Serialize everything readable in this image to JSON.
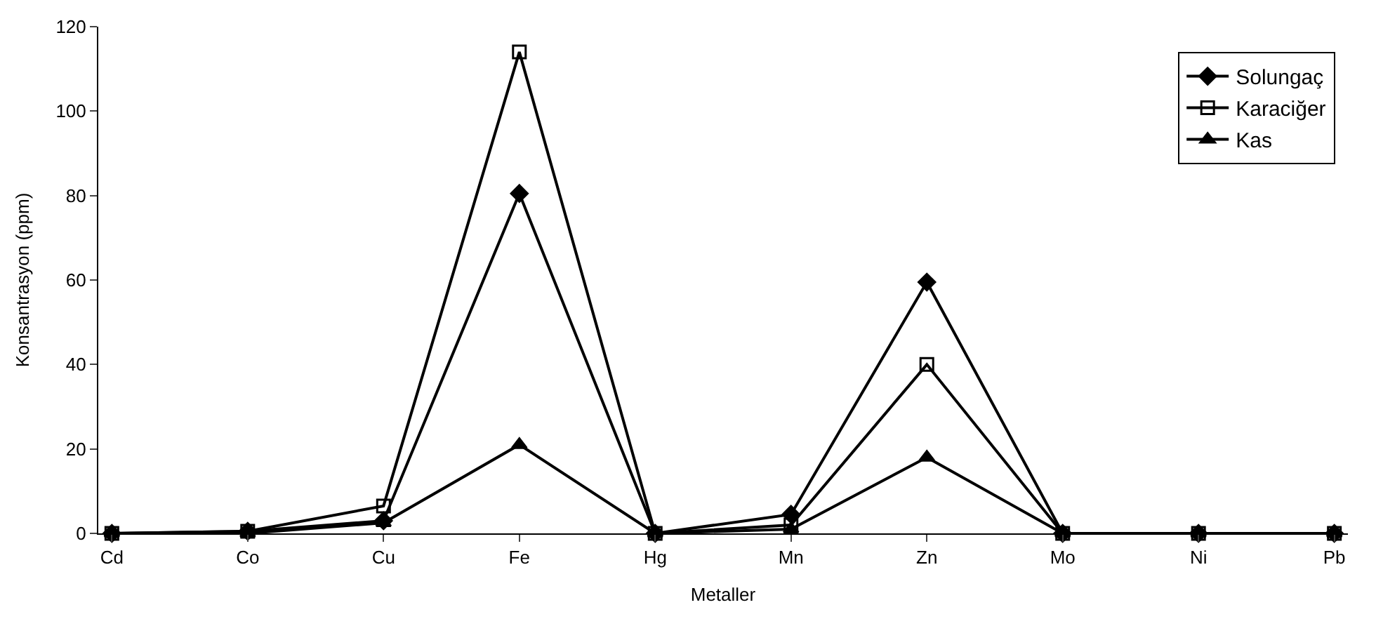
{
  "chart_data": {
    "type": "line",
    "xlabel": "Metaller",
    "ylabel": "Konsantrasyon (ppm)",
    "categories": [
      "Cd",
      "Co",
      "Cu",
      "Fe",
      "Hg",
      "Mn",
      "Zn",
      "Mo",
      "Ni",
      "Pb"
    ],
    "series": [
      {
        "name": "Solungaç",
        "color": "#000000",
        "marker": "diamond",
        "values": [
          0,
          0.5,
          3,
          80.5,
          0,
          4.5,
          59.5,
          0,
          0,
          0
        ]
      },
      {
        "name": "Karaciğer",
        "color": "#000000",
        "marker": "square",
        "values": [
          0,
          0.5,
          6.5,
          114,
          0,
          2,
          40,
          0,
          0,
          0
        ]
      },
      {
        "name": "Kas",
        "color": "#000000",
        "marker": "triangle",
        "values": [
          0,
          0,
          2.5,
          21,
          0,
          1,
          18,
          0,
          0,
          0
        ]
      }
    ],
    "ylim": [
      0,
      120
    ],
    "yticks": [
      0,
      20,
      40,
      60,
      80,
      100,
      120
    ],
    "grid": false,
    "legend": "top right",
    "line_style": "solid"
  }
}
